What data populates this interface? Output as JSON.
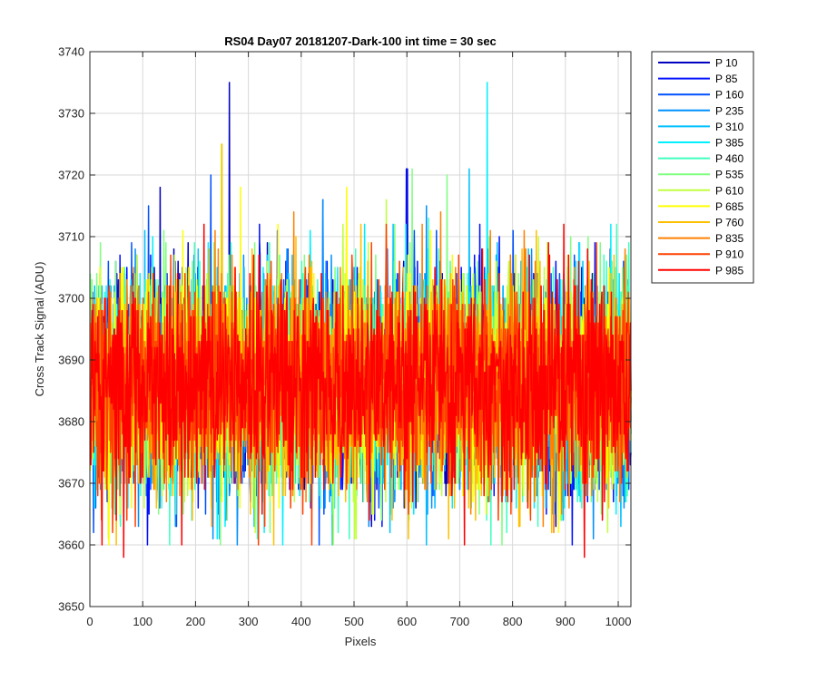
{
  "chart_data": {
    "type": "line",
    "title": "RS04 Day07 20181207-Dark-100 int time = 30 sec",
    "xlabel": "Pixels",
    "ylabel": "Cross Track Signal (ADU)",
    "xlim": [
      0,
      1024
    ],
    "ylim": [
      3650,
      3740
    ],
    "xticks": [
      0,
      100,
      200,
      300,
      400,
      500,
      600,
      700,
      800,
      900,
      1000
    ],
    "yticks": [
      3650,
      3660,
      3670,
      3680,
      3690,
      3700,
      3710,
      3720,
      3730,
      3740
    ],
    "grid": true,
    "legend_position": "outside-right",
    "baseline": 3686,
    "noise_amplitude": 9,
    "n_points": 1024,
    "series": [
      {
        "name": "P 10",
        "color": "#0000bf",
        "spikes": [
          [
            263,
            3735
          ],
          [
            132,
            3718
          ],
          [
            600,
            3721
          ]
        ]
      },
      {
        "name": "P 85",
        "color": "#0010ff",
        "spikes": [
          [
            440,
            3716
          ],
          [
            598,
            3721
          ]
        ]
      },
      {
        "name": "P 160",
        "color": "#0050ff",
        "spikes": [
          [
            228,
            3720
          ],
          [
            110,
            3715
          ]
        ]
      },
      {
        "name": "P 235",
        "color": "#0090ff",
        "spikes": [
          [
            636,
            3715
          ],
          [
            440,
            3716
          ]
        ]
      },
      {
        "name": "P 310",
        "color": "#00c0ff",
        "spikes": [
          [
            717,
            3721
          ]
        ]
      },
      {
        "name": "P 385",
        "color": "#00f0ff",
        "spikes": [
          [
            751,
            3735
          ]
        ]
      },
      {
        "name": "P 460",
        "color": "#40ffc0",
        "spikes": [
          [
            640,
            3713
          ]
        ]
      },
      {
        "name": "P 535",
        "color": "#80ff80",
        "spikes": [
          [
            609,
            3721
          ],
          [
            675,
            3720
          ]
        ]
      },
      {
        "name": "P 610",
        "color": "#c0ff40",
        "spikes": [
          [
            248,
            3725
          ],
          [
            560,
            3716
          ]
        ]
      },
      {
        "name": "P 685",
        "color": "#ffff00",
        "spikes": [
          [
            284,
            3718
          ],
          [
            485,
            3718
          ]
        ]
      },
      {
        "name": "P 760",
        "color": "#ffc000",
        "spikes": [
          [
            249,
            3725
          ]
        ]
      },
      {
        "name": "P 835",
        "color": "#ff8000",
        "spikes": [
          [
            385,
            3714
          ],
          [
            663,
            3714
          ]
        ]
      },
      {
        "name": "P 910",
        "color": "#ff4000",
        "spikes": [
          [
            560,
            3712
          ]
        ]
      },
      {
        "name": "P 985",
        "color": "#ff0000",
        "spikes": [
          [
            63,
            3658
          ],
          [
            935,
            3658
          ]
        ]
      }
    ]
  }
}
